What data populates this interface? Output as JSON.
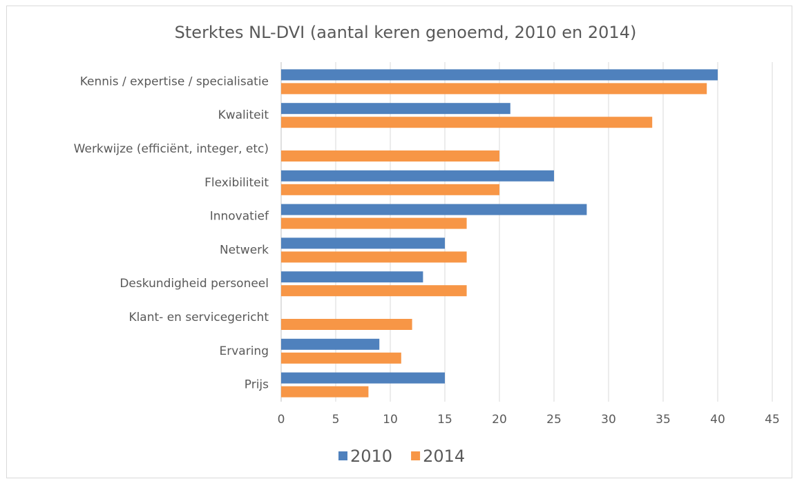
{
  "chart_data": {
    "type": "hbar",
    "title": "Sterktes NL-DVI (aantal keren genoemd, 2010 en 2014)",
    "categories": [
      "Kennis / expertise / specialisatie",
      "Kwaliteit",
      "Werkwijze (efficiënt, integer, etc)",
      "Flexibiliteit",
      "Innovatief",
      "Netwerk",
      "Deskundigheid personeel",
      "Klant- en servicegericht",
      "Ervaring",
      "Prijs"
    ],
    "series": [
      {
        "name": "2010",
        "color": "#4f81bd",
        "values": [
          40,
          21,
          null,
          25,
          28,
          15,
          13,
          null,
          9,
          15
        ]
      },
      {
        "name": "2014",
        "color": "#f79646",
        "values": [
          39,
          34,
          20,
          20,
          17,
          17,
          17,
          12,
          11,
          8
        ]
      }
    ],
    "xlim": [
      0,
      45
    ],
    "xticks": [
      0,
      5,
      10,
      15,
      20,
      25,
      30,
      35,
      40,
      45
    ],
    "grid": true,
    "legend": "bottom"
  }
}
